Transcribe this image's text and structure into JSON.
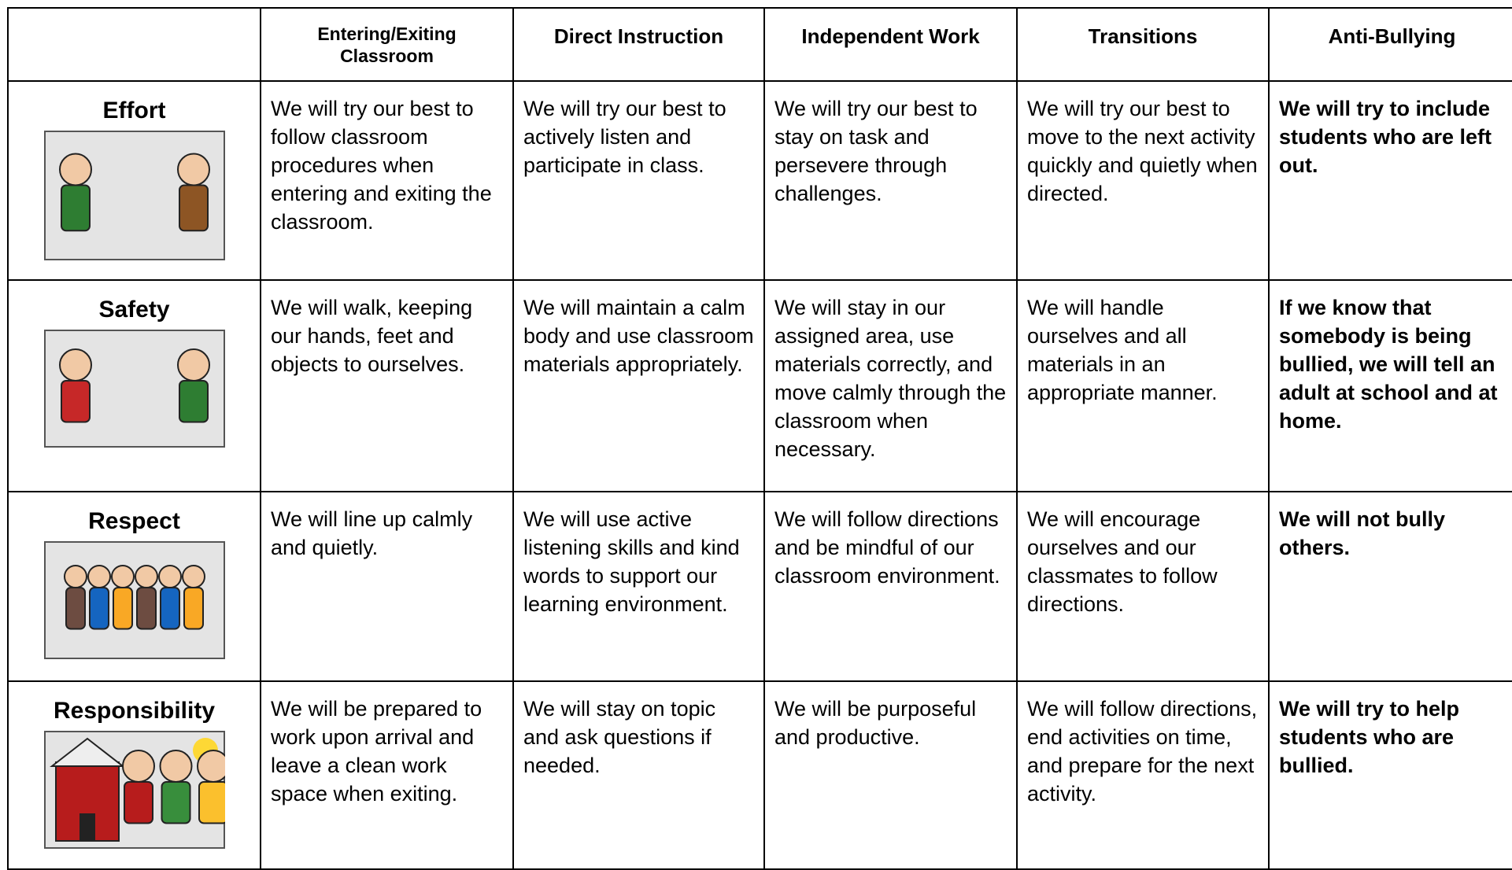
{
  "table": {
    "columns": [
      "Entering/Exiting Classroom",
      "Direct Instruction",
      "Independent Work",
      "Transitions",
      "Anti-Bullying"
    ],
    "rows": [
      {
        "label": "Effort",
        "cells": [
          "We will try our best to follow classroom procedures when entering and exiting the classroom.",
          "We will try our best to actively listen and participate in class.",
          "We will try our best to stay on task and persevere through challenges.",
          "We will try our best to move to the next activity quickly and quietly when directed.",
          "We will try to include students who are left out."
        ]
      },
      {
        "label": "Safety",
        "cells": [
          "We will walk, keeping our hands, feet and objects to ourselves.",
          "We will maintain a calm body and use classroom materials appropriately.",
          "We will stay in our assigned area, use materials correctly, and move calmly through the classroom when necessary.",
          "We will handle ourselves and all materials in an appropriate manner.",
          "If we know that somebody is being bullied, we will tell an adult at school and at home."
        ]
      },
      {
        "label": "Respect",
        "cells": [
          "We will line up calmly and quietly.",
          "We will use active listening skills and kind words to support our learning environment.",
          "We will follow directions and be mindful of our classroom environment.",
          "We will encourage ourselves and our classmates to follow directions.",
          "We will not bully others."
        ]
      },
      {
        "label": "Responsibility",
        "cells": [
          "We will be prepared to work upon arrival and leave a clean work space when exiting.",
          "We will stay on topic and ask questions if needed.",
          "We will be purposeful and productive.",
          "We will follow directions, end activities on time, and prepare for the next activity.",
          "We will try to help students who are bullied."
        ]
      }
    ]
  }
}
